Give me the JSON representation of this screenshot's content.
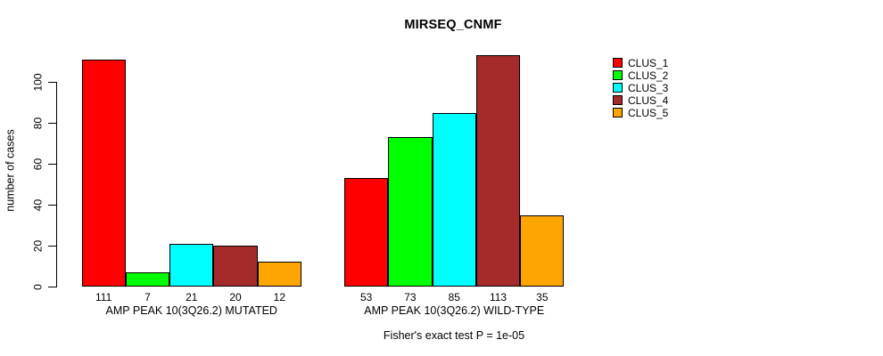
{
  "chart_data": {
    "type": "bar",
    "title": "MIRSEQ_CNMF",
    "ylabel": "number of cases",
    "annotation": "Fisher's exact test P = 1e-05",
    "yticks": [
      0,
      20,
      40,
      60,
      80,
      100
    ],
    "ylim": [
      0,
      116
    ],
    "grid": false,
    "legend_position": "right-outside",
    "categories": [
      "AMP PEAK 10(3Q26.2) MUTATED",
      "AMP PEAK 10(3Q26.2) WILD-TYPE"
    ],
    "series": [
      {
        "name": "CLUS_1",
        "color": "#FF0000",
        "values": [
          111,
          53
        ]
      },
      {
        "name": "CLUS_2",
        "color": "#00FF00",
        "values": [
          7,
          73
        ]
      },
      {
        "name": "CLUS_3",
        "color": "#00FFFF",
        "values": [
          21,
          85
        ]
      },
      {
        "name": "CLUS_4",
        "color": "#A52A2A",
        "values": [
          20,
          113
        ]
      },
      {
        "name": "CLUS_5",
        "color": "#FFA500",
        "values": [
          12,
          35
        ]
      }
    ],
    "bar_labels": [
      [
        111,
        7,
        21,
        20,
        12
      ],
      [
        53,
        73,
        85,
        113,
        35
      ]
    ]
  }
}
